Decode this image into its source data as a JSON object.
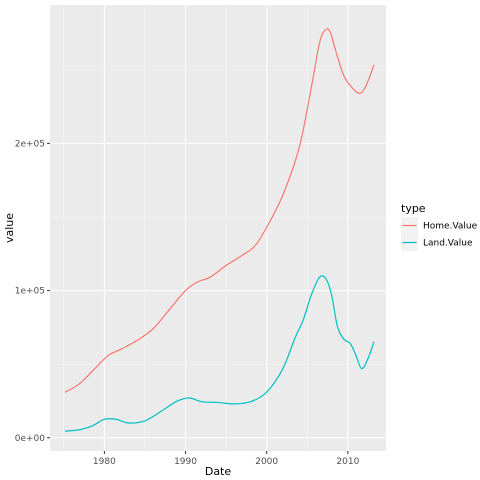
{
  "chart_data": {
    "type": "line",
    "xlabel": "Date",
    "ylabel": "value",
    "legend_title": "type",
    "legend_position": "right",
    "grid": true,
    "xlim": [
      1973.3,
      2014.7
    ],
    "ylim": [
      -9000,
      294000
    ],
    "x_ticks": [
      1980,
      1990,
      2000,
      2010
    ],
    "x_tick_labels": [
      "1980",
      "1990",
      "2000",
      "2010"
    ],
    "y_ticks": [
      0,
      100000,
      200000
    ],
    "y_tick_labels": [
      "0e+00",
      "1e+05",
      "2e+05"
    ],
    "series": [
      {
        "name": "Home.Value",
        "color": "#F8766D",
        "x": [
          1975.2,
          1977,
          1979,
          1980.5,
          1982,
          1984,
          1986,
          1988,
          1990,
          1991.5,
          1993,
          1995,
          1997,
          1998.5,
          2000,
          2002,
          2004,
          2005.5,
          2006.5,
          2007.2,
          2007.8,
          2008.5,
          2009.5,
          2010.5,
          2011.5,
          2012.3,
          2013.2
        ],
        "y": [
          31000,
          37000,
          48000,
          56000,
          60000,
          66000,
          74000,
          87000,
          100000,
          106000,
          109000,
          117000,
          124000,
          130000,
          143000,
          165000,
          197000,
          238000,
          268000,
          277000,
          276000,
          263000,
          246000,
          238000,
          234000,
          240000,
          253000
        ]
      },
      {
        "name": "Land.Value",
        "color": "#00BFC4",
        "x": [
          1975.2,
          1977,
          1978.5,
          1980,
          1981.5,
          1983,
          1985,
          1987,
          1989,
          1990.5,
          1992,
          1994,
          1996,
          1998,
          2000,
          2002,
          2003.5,
          2004.5,
          2005.5,
          2006.5,
          2007.3,
          2008,
          2008.7,
          2009.5,
          2010.3,
          2011,
          2011.7,
          2012.5,
          2013.2
        ],
        "y": [
          4500,
          5500,
          8000,
          12500,
          12500,
          10000,
          11500,
          18000,
          25000,
          27000,
          24500,
          24000,
          23000,
          24500,
          31000,
          47000,
          68000,
          80000,
          97000,
          109000,
          108000,
          97000,
          76000,
          67000,
          64000,
          56000,
          47000,
          54000,
          65000
        ]
      }
    ]
  }
}
